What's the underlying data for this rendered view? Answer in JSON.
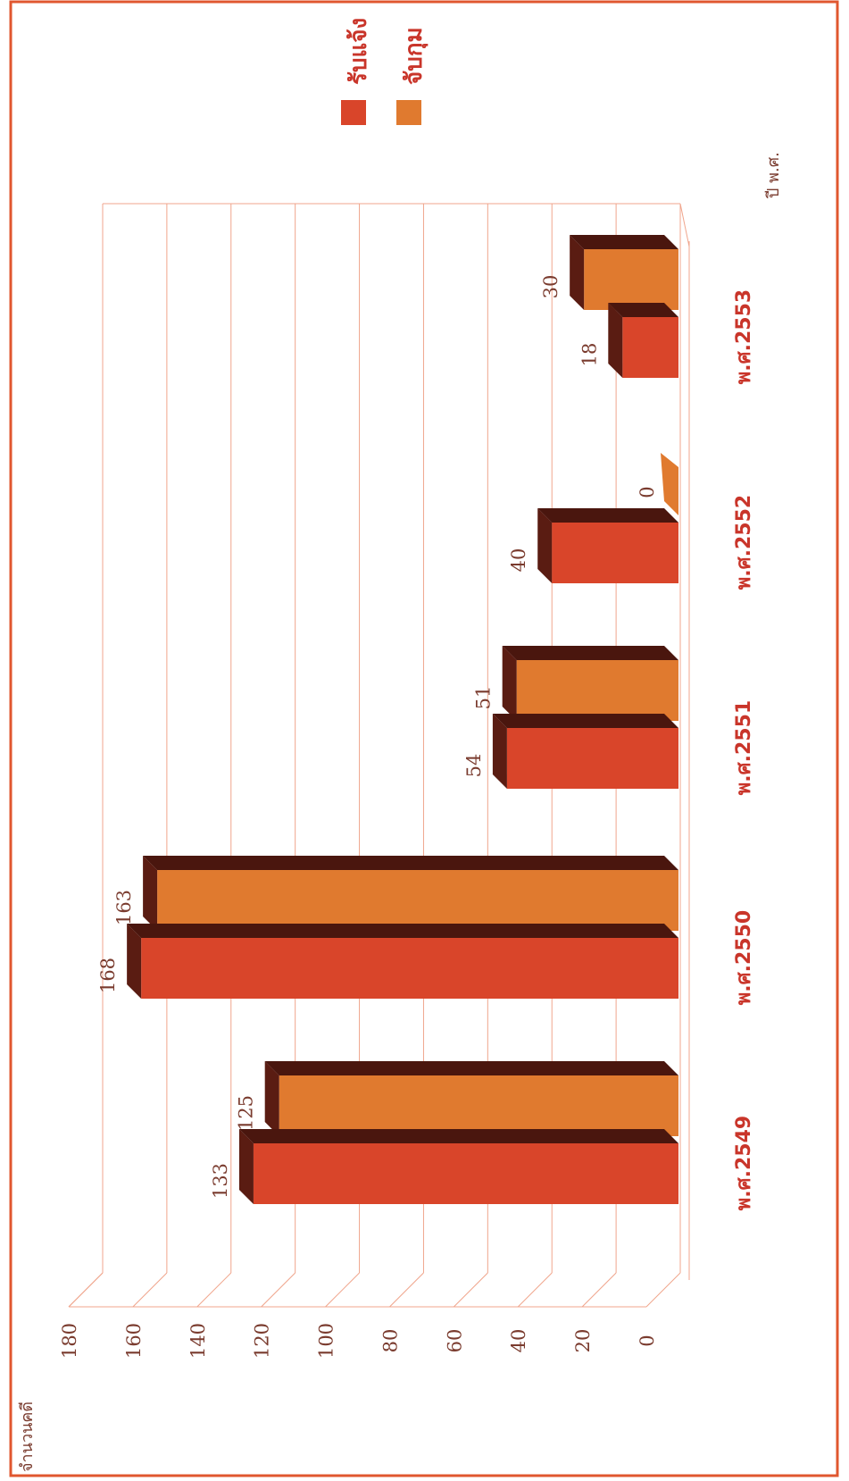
{
  "chart_data": {
    "type": "bar",
    "orientation": "rotated 90° (page landscape, values run upward)",
    "categories": [
      "พ.ศ.2549",
      "พ.ศ.2550",
      "พ.ศ.2551",
      "พ.ศ.2552",
      "พ.ศ.2553"
    ],
    "series": [
      {
        "name": "รับแจ้ง",
        "values": [
          133,
          168,
          54,
          40,
          18
        ]
      },
      {
        "name": "จับกุม",
        "values": [
          125,
          163,
          51,
          0,
          30
        ]
      }
    ],
    "ylabel": "จำนวนคดี",
    "xlabel": "ปี พ.ศ.",
    "ylim": [
      0,
      180
    ],
    "yticks": [
      0,
      20,
      40,
      60,
      80,
      100,
      120,
      140,
      160,
      180
    ],
    "grid": true,
    "legend": "top-right",
    "colors": {
      "series1": "#d9452a",
      "series2": "#e07a2f",
      "top": "#5a1c12",
      "border": "#e0572f",
      "grid": "#f0a58c"
    }
  }
}
